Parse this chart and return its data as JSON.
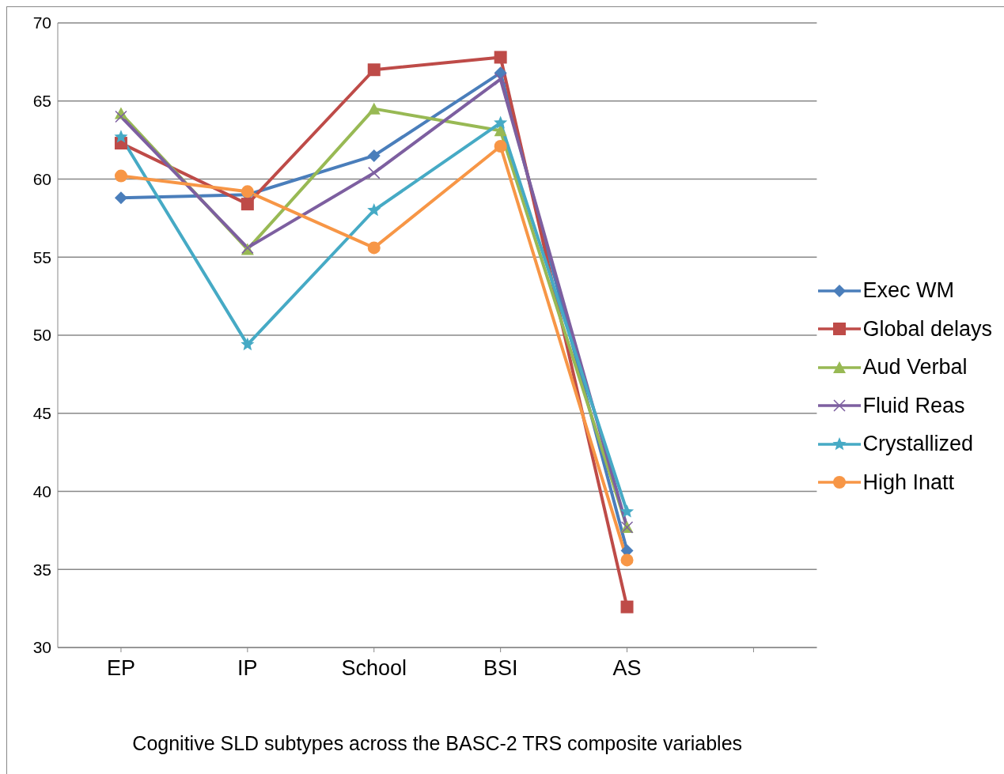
{
  "chart_data": {
    "type": "line",
    "xlabel": "Cognitive SLD subtypes across the BASC-2 TRS composite variables",
    "categories": [
      "EP",
      "IP",
      "School",
      "BSI",
      "AS",
      null
    ],
    "series": [
      {
        "name": "Exec WM",
        "color": "#4a7ebb",
        "marker": "diamond",
        "values": [
          58.8,
          59.0,
          61.5,
          66.8,
          36.2,
          null
        ]
      },
      {
        "name": "Global delays",
        "color": "#be4b48",
        "marker": "square",
        "values": [
          62.3,
          58.4,
          67.0,
          67.8,
          32.6,
          null
        ]
      },
      {
        "name": "Aud Verbal",
        "color": "#98b954",
        "marker": "triangle",
        "values": [
          64.2,
          55.5,
          64.5,
          63.1,
          37.7,
          null
        ]
      },
      {
        "name": "Fluid Reas",
        "color": "#7d5fa0",
        "marker": "cross",
        "values": [
          64.0,
          55.6,
          60.4,
          66.4,
          37.7,
          null
        ]
      },
      {
        "name": "Crystallized",
        "color": "#46aac5",
        "marker": "star",
        "values": [
          62.7,
          49.4,
          58.0,
          63.6,
          38.7,
          null
        ]
      },
      {
        "name": "High Inatt",
        "color": "#f79646",
        "marker": "circle",
        "values": [
          60.2,
          59.2,
          55.6,
          62.1,
          35.6,
          null
        ]
      }
    ],
    "ylim": [
      30,
      70
    ],
    "yticks": [
      30,
      35,
      40,
      45,
      50,
      55,
      60,
      65,
      70
    ],
    "grid": "y",
    "legend": "right"
  }
}
